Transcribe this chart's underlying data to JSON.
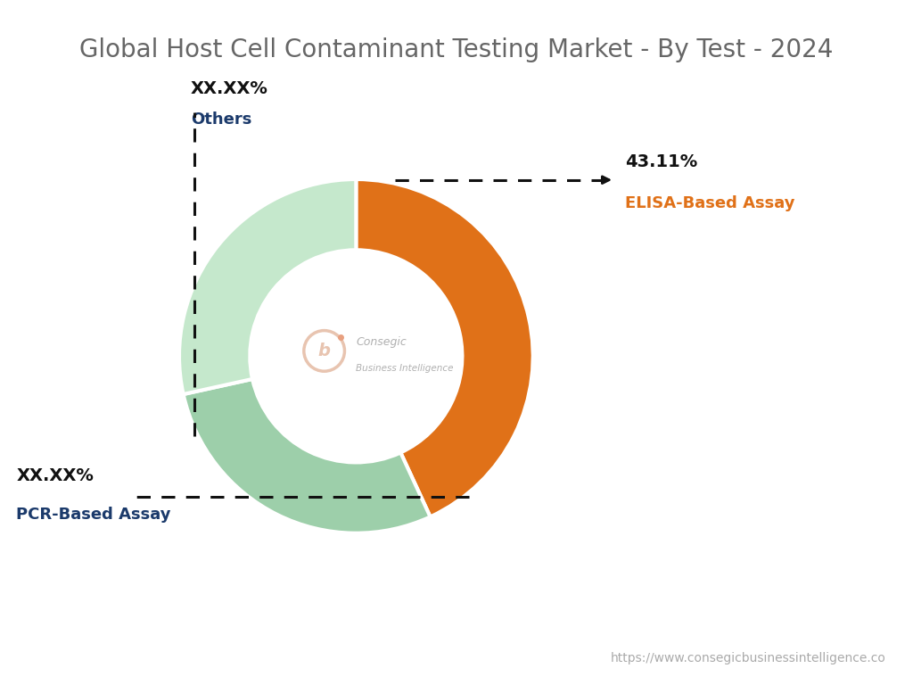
{
  "title": "Global Host Cell Contaminant Testing Market - By Test - 2024",
  "title_color": "#666666",
  "title_fontsize": 20,
  "segments": [
    {
      "label": "ELISA-Based Assay",
      "value": 43.11,
      "display": "43.11%",
      "color": "#E07118"
    },
    {
      "label": "Others",
      "value": 28.44,
      "display": "XX.XX%",
      "color": "#9DCFAA"
    },
    {
      "label": "PCR-Based Assay",
      "value": 28.45,
      "display": "XX.XX%",
      "color": "#C5E8CC"
    }
  ],
  "label_color_percent": "#111111",
  "label_color_elisa_name": "#E07118",
  "label_color_others_name": "#1B3A6B",
  "label_color_pcr_name": "#1B3A6B",
  "background_color": "#ffffff",
  "url_text": "https://www.consegicbusinessintelligence.co",
  "url_color": "#aaaaaa",
  "start_angle": 90
}
